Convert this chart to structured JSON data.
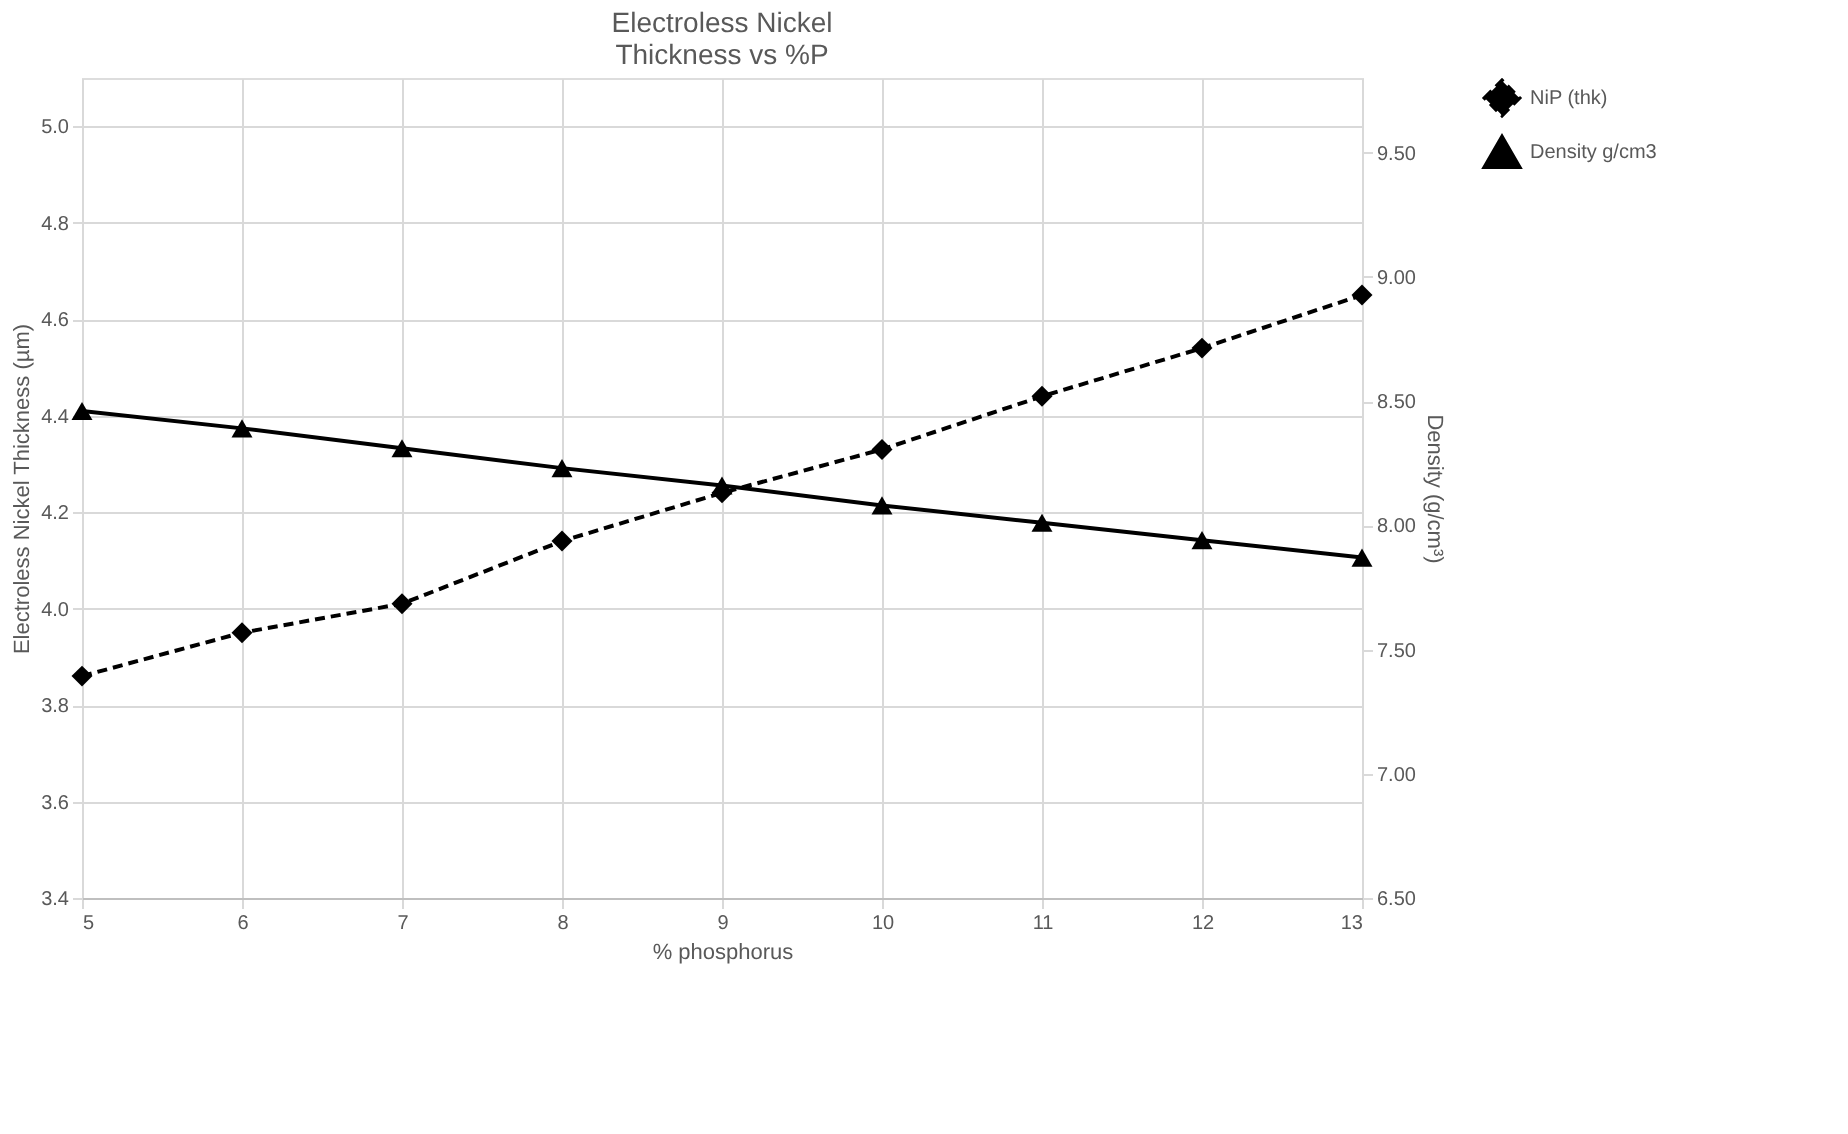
{
  "chart_data": {
    "type": "line",
    "title": "Electroless Nickel\nThickness vs %P",
    "xlabel": "% phosphorus",
    "ylabel": "Electroless Nickel Thickness (µm)",
    "y2label": "Density (g/cm³)",
    "x": [
      5,
      6,
      7,
      8,
      9,
      10,
      11,
      12,
      13
    ],
    "series": [
      {
        "name": "NiP (thk)",
        "color": "#000000",
        "marker": "diamond",
        "line_style": "dashed",
        "values": [
          3.86,
          3.95,
          4.01,
          4.14,
          4.24,
          4.33,
          4.44,
          4.54,
          4.65
        ]
      },
      {
        "name": "Density g/cm3",
        "color": "#000000",
        "marker": "triangle",
        "line_style": "solid",
        "axis": "y2",
        "values": [
          8.46,
          8.39,
          8.31,
          8.23,
          8.16,
          8.08,
          8.01,
          7.94,
          7.87
        ]
      }
    ],
    "xlim": [
      5,
      13
    ],
    "xticks": [
      5,
      6,
      7,
      8,
      9,
      10,
      11,
      12,
      13
    ],
    "ylim": [
      3.4,
      5.1
    ],
    "yticks": [
      {
        "value": 3.4,
        "label": "3.4"
      },
      {
        "value": 3.6,
        "label": "3.6"
      },
      {
        "value": 3.8,
        "label": "3.8"
      },
      {
        "value": 4.0,
        "label": "4.0"
      },
      {
        "value": 4.2,
        "label": "4.2"
      },
      {
        "value": 4.4,
        "label": "4.4"
      },
      {
        "value": 4.6,
        "label": "4.6"
      },
      {
        "value": 4.8,
        "label": "4.8"
      },
      {
        "value": 5.0,
        "label": "5.0"
      }
    ],
    "y2lim": [
      6.5,
      9.8
    ],
    "y2ticks": [
      {
        "value": 6.5,
        "label": "6.50"
      },
      {
        "value": 7.0,
        "label": "7.00"
      },
      {
        "value": 7.5,
        "label": "7.50"
      },
      {
        "value": 8.0,
        "label": "8.00"
      },
      {
        "value": 8.5,
        "label": "8.50"
      },
      {
        "value": 9.0,
        "label": "9.00"
      },
      {
        "value": 9.5,
        "label": "9.50"
      }
    ],
    "grid": true,
    "legend": "right"
  }
}
